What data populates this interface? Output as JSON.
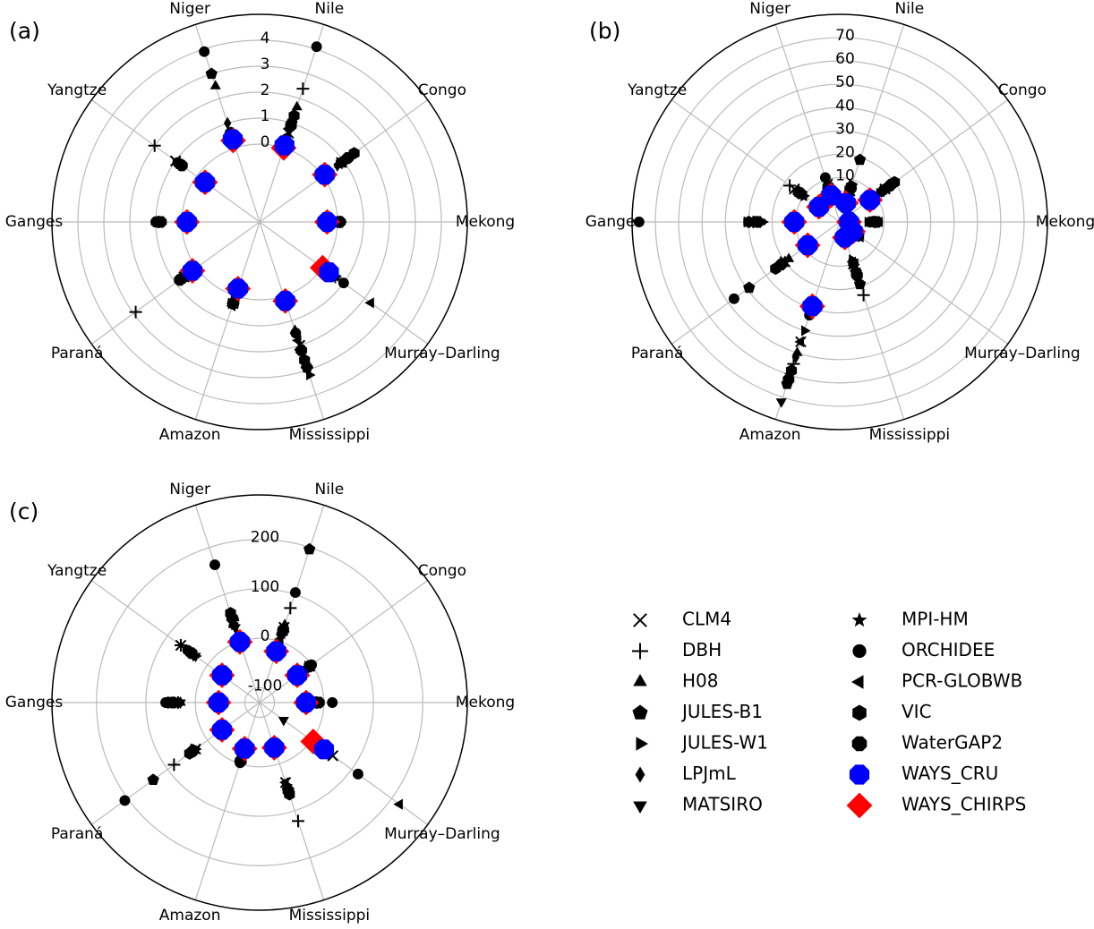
{
  "chart_data": [
    {
      "type": "polar-scatter",
      "title": "(a)",
      "categories": [
        "Nile",
        "Congo",
        "Mekong",
        "Murray–Darling",
        "Mississippi",
        "Amazon",
        "Paraná",
        "Ganges",
        "Yangtze",
        "Niger"
      ],
      "ylim": [
        -3,
        5
      ],
      "yticks": [
        0,
        1,
        2,
        3,
        4
      ],
      "grid": true,
      "series": [
        {
          "name": "CLM4",
          "marker": "x",
          "color": "#000000",
          "values": [
            0.6,
            0.9,
            0.0,
            0.5,
            2.0,
            0.3,
            0.6,
            0.9,
            1.0,
            0.5
          ]
        },
        {
          "name": "DBH",
          "marker": "+",
          "color": "#000000",
          "values": [
            2.4,
            1.0,
            0.1,
            0.6,
            2.9,
            0.3,
            2.9,
            0.9,
            2.0,
            0.6
          ]
        },
        {
          "name": "H08",
          "marker": "^",
          "color": "#000000",
          "values": [
            1.65,
            0.8,
            0.0,
            0.6,
            1.4,
            0.2,
            0.8,
            1.0,
            0.8,
            2.5
          ]
        },
        {
          "name": "JULES-B1",
          "marker": "p",
          "color": "#000000",
          "values": [
            1.0,
            0.9,
            0.0,
            0.5,
            2.9,
            0.3,
            0.7,
            0.9,
            0.8,
            3.0
          ]
        },
        {
          "name": "JULES-W1",
          "marker": ">",
          "color": "#000000",
          "values": [
            0.9,
            0.8,
            0.1,
            0.5,
            3.2,
            0.2,
            0.6,
            0.8,
            0.7,
            0.6
          ]
        },
        {
          "name": "LPJmL",
          "marker": "d",
          "color": "#000000",
          "values": [
            0.8,
            0.7,
            0.0,
            0.4,
            2.7,
            0.3,
            0.7,
            1.0,
            0.8,
            1.0
          ]
        },
        {
          "name": "MATSIRO",
          "marker": "v",
          "color": "#000000",
          "values": [
            0.7,
            1.0,
            0.1,
            0.5,
            3.0,
            0.3,
            0.8,
            0.9,
            0.9,
            0.5
          ]
        },
        {
          "name": "MPI-HM",
          "marker": "*",
          "color": "#000000",
          "values": [
            1.1,
            1.1,
            0.0,
            0.6,
            2.8,
            0.2,
            0.6,
            0.9,
            0.7,
            0.5
          ]
        },
        {
          "name": "ORCHIDEE",
          "marker": "o",
          "color": "#000000",
          "values": [
            4.1,
            1.0,
            0.1,
            1.0,
            1.5,
            0.3,
            0.7,
            1.0,
            0.9,
            3.9
          ]
        },
        {
          "name": "PCR-GLOBWB",
          "marker": "<",
          "color": "#000000",
          "values": [
            0.5,
            0.8,
            0.1,
            2.3,
            1.8,
            0.4,
            0.7,
            0.9,
            0.8,
            0.4
          ]
        },
        {
          "name": "VIC",
          "marker": "h",
          "color": "#000000",
          "values": [
            1.3,
            1.5,
            0.0,
            0.5,
            2.6,
            0.3,
            0.7,
            0.9,
            0.8,
            0.5
          ]
        },
        {
          "name": "WaterGAP2",
          "marker": "8",
          "color": "#000000",
          "values": [
            0.9,
            1.2,
            0.1,
            0.4,
            2.2,
            0.3,
            0.8,
            0.8,
            0.7,
            0.6
          ]
        },
        {
          "name": "WAYS_CRU",
          "marker": "8",
          "color": "#0000ff",
          "values": [
            0.1,
            0.1,
            -0.4,
            0.3,
            0.2,
            -0.3,
            0.2,
            -0.2,
            -0.4,
            0.35
          ]
        },
        {
          "name": "WAYS_CHIRPS",
          "marker": "D",
          "color": "#ff0000",
          "values": [
            0.0,
            0.1,
            -0.4,
            0.0,
            0.2,
            -0.3,
            0.2,
            -0.2,
            -0.4,
            0.3
          ]
        }
      ]
    },
    {
      "type": "polar-scatter",
      "title": "(b)",
      "categories": [
        "Nile",
        "Congo",
        "Mekong",
        "Murray–Darling",
        "Mississippi",
        "Amazon",
        "Paraná",
        "Ganges",
        "Yangtze",
        "Niger"
      ],
      "ylim": [
        -9,
        80
      ],
      "yticks": [
        10,
        20,
        30,
        40,
        50,
        60,
        70
      ],
      "grid": true,
      "series": [
        {
          "values": [
            5,
            15,
            5,
            -1,
            10,
            45,
            20,
            30,
            15,
            8
          ]
        },
        {
          "values": [
            6,
            14,
            6,
            0,
            24,
            55,
            24,
            28,
            17.5,
            6
          ]
        },
        {
          "values": [
            4,
            16,
            4,
            -1,
            12,
            50,
            18,
            25,
            12,
            7
          ]
        },
        {
          "values": [
            19,
            17,
            5,
            1,
            19,
            64,
            39,
            27,
            13,
            5
          ]
        },
        {
          "values": [
            8,
            12,
            3,
            -2,
            8,
            40,
            22,
            24,
            10,
            4
          ]
        },
        {
          "values": [
            3,
            13,
            4,
            -1,
            12,
            52,
            20,
            26,
            11,
            6
          ]
        },
        {
          "values": [
            5,
            15,
            6,
            0,
            13,
            72,
            21,
            25,
            12,
            5
          ]
        },
        {
          "values": [
            6,
            16,
            4,
            -1,
            11,
            60,
            23,
            28,
            11,
            6
          ]
        },
        {
          "values": [
            4,
            14,
            5,
            0,
            10,
            33,
            47,
            77,
            12,
            11
          ]
        },
        {
          "values": [
            5,
            13,
            8,
            2,
            9,
            45,
            20,
            29,
            10,
            5
          ]
        },
        {
          "values": [
            7,
            20,
            6,
            1,
            14,
            58,
            25,
            30,
            13,
            6
          ]
        },
        {
          "values": [
            6,
            18,
            7,
            0,
            15,
            62,
            22,
            26,
            12,
            7
          ]
        },
        {
          "values": [
            -0.5,
            7,
            -5,
            -2,
            -2,
            29,
            8,
            10.5,
            2,
            3
          ]
        },
        {
          "values": [
            -0.5,
            7,
            -5,
            -2,
            -2,
            29,
            8,
            10.5,
            2,
            3
          ]
        }
      ]
    },
    {
      "type": "polar-scatter",
      "title": "(c)",
      "categories": [
        "Nile",
        "Congo",
        "Mekong",
        "Murray–Darling",
        "Mississippi",
        "Amazon",
        "Paraná",
        "Ganges",
        "Yangtze",
        "Niger"
      ],
      "ylim": [
        -130,
        290
      ],
      "yticks": [
        -100,
        0,
        100,
        200
      ],
      "grid": true,
      "series": [
        {
          "values": [
            30,
            -5,
            -20,
            53,
            40,
            -10,
            30,
            40,
            67,
            40
          ]
        },
        {
          "values": [
            71,
            -10,
            -15,
            30,
            122,
            -5,
            84,
            35,
            67,
            45
          ]
        },
        {
          "values": [
            25,
            -8,
            -22,
            20,
            50,
            -8,
            35,
            30,
            35,
            40
          ]
        },
        {
          "values": [
            196,
            -2,
            -18,
            25,
            55,
            -5,
            136,
            45,
            40,
            50
          ]
        },
        {
          "values": [
            20,
            -10,
            -25,
            15,
            45,
            -12,
            30,
            55,
            30,
            35
          ]
        },
        {
          "values": [
            35,
            -12,
            -20,
            10,
            60,
            -6,
            40,
            35,
            38,
            55
          ]
        },
        {
          "values": [
            10,
            -15,
            -25,
            -70,
            50,
            -8,
            32,
            30,
            30,
            30
          ]
        },
        {
          "values": [
            15,
            -5,
            -18,
            20,
            55,
            -4,
            38,
            50,
            45,
            45
          ]
        },
        {
          "values": [
            104,
            0,
            17,
            116,
            60,
            -2,
            207,
            60,
            50,
            163
          ]
        },
        {
          "values": [
            5,
            -8,
            -22,
            220,
            40,
            -10,
            35,
            40,
            35,
            30
          ]
        },
        {
          "values": [
            20,
            -6,
            -15,
            30,
            65,
            -6,
            45,
            55,
            42,
            60
          ]
        },
        {
          "values": [
            25,
            -4,
            -10,
            25,
            58,
            -5,
            38,
            45,
            40,
            50
          ]
        },
        {
          "values": [
            -21,
            -36,
            -36,
            31,
            -34,
            -32,
            -36,
            -47,
            -36,
            -1
          ]
        },
        {
          "values": [
            -21,
            -36,
            -36,
            4,
            -34,
            -32,
            -36,
            -47,
            -36,
            -1
          ]
        }
      ]
    }
  ]
}
